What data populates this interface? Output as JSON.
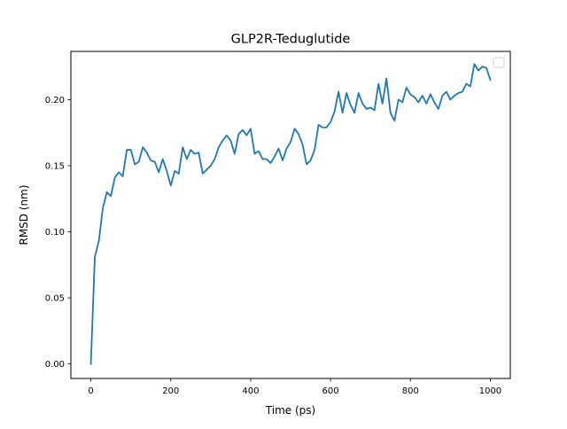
{
  "chart_data": {
    "type": "line",
    "title": "GLP2R-Teduglutide",
    "xlabel": "Time (ps)",
    "ylabel": "RMSD (nm)",
    "xlim": [
      -50,
      1050
    ],
    "ylim": [
      -0.011,
      0.2365
    ],
    "x_ticks": [
      0,
      200,
      400,
      600,
      800,
      1000
    ],
    "x_tick_labels": [
      "0",
      "200",
      "400",
      "600",
      "800",
      "1000"
    ],
    "y_ticks": [
      0.0,
      0.05,
      0.1,
      0.15,
      0.2
    ],
    "y_tick_labels": [
      "0.00",
      "0.05",
      "0.10",
      "0.15",
      "0.20"
    ],
    "grid": false,
    "legend": "upper right, empty",
    "series": [
      {
        "color": "#1f77b4",
        "x": [
          0,
          10,
          20,
          30,
          40,
          50,
          60,
          70,
          80,
          90,
          100,
          110,
          120,
          130,
          140,
          150,
          160,
          170,
          180,
          190,
          200,
          210,
          220,
          230,
          240,
          250,
          260,
          270,
          280,
          290,
          300,
          310,
          320,
          330,
          340,
          350,
          360,
          370,
          380,
          390,
          400,
          410,
          420,
          430,
          440,
          450,
          460,
          470,
          480,
          490,
          500,
          510,
          520,
          530,
          540,
          550,
          560,
          570,
          580,
          590,
          600,
          610,
          620,
          630,
          640,
          650,
          660,
          670,
          680,
          690,
          700,
          710,
          720,
          730,
          740,
          750,
          760,
          770,
          780,
          790,
          800,
          810,
          820,
          830,
          840,
          850,
          860,
          870,
          880,
          890,
          900,
          910,
          920,
          930,
          940,
          950,
          960,
          970,
          980,
          990,
          1000
        ],
        "y": [
          0.0,
          0.081,
          0.093,
          0.118,
          0.13,
          0.127,
          0.141,
          0.145,
          0.142,
          0.162,
          0.162,
          0.151,
          0.153,
          0.164,
          0.16,
          0.154,
          0.153,
          0.145,
          0.155,
          0.146,
          0.135,
          0.146,
          0.144,
          0.164,
          0.155,
          0.162,
          0.159,
          0.16,
          0.144,
          0.147,
          0.15,
          0.155,
          0.164,
          0.169,
          0.173,
          0.169,
          0.159,
          0.174,
          0.177,
          0.173,
          0.178,
          0.159,
          0.161,
          0.155,
          0.155,
          0.152,
          0.157,
          0.163,
          0.154,
          0.163,
          0.168,
          0.178,
          0.174,
          0.166,
          0.151,
          0.154,
          0.162,
          0.181,
          0.179,
          0.179,
          0.183,
          0.191,
          0.206,
          0.19,
          0.205,
          0.196,
          0.19,
          0.205,
          0.197,
          0.193,
          0.194,
          0.192,
          0.212,
          0.197,
          0.216,
          0.19,
          0.184,
          0.2,
          0.198,
          0.209,
          0.204,
          0.202,
          0.198,
          0.203,
          0.197,
          0.204,
          0.198,
          0.193,
          0.203,
          0.206,
          0.2,
          0.203,
          0.205,
          0.206,
          0.212,
          0.21,
          0.227,
          0.222,
          0.225,
          0.224,
          0.215
        ]
      }
    ]
  }
}
